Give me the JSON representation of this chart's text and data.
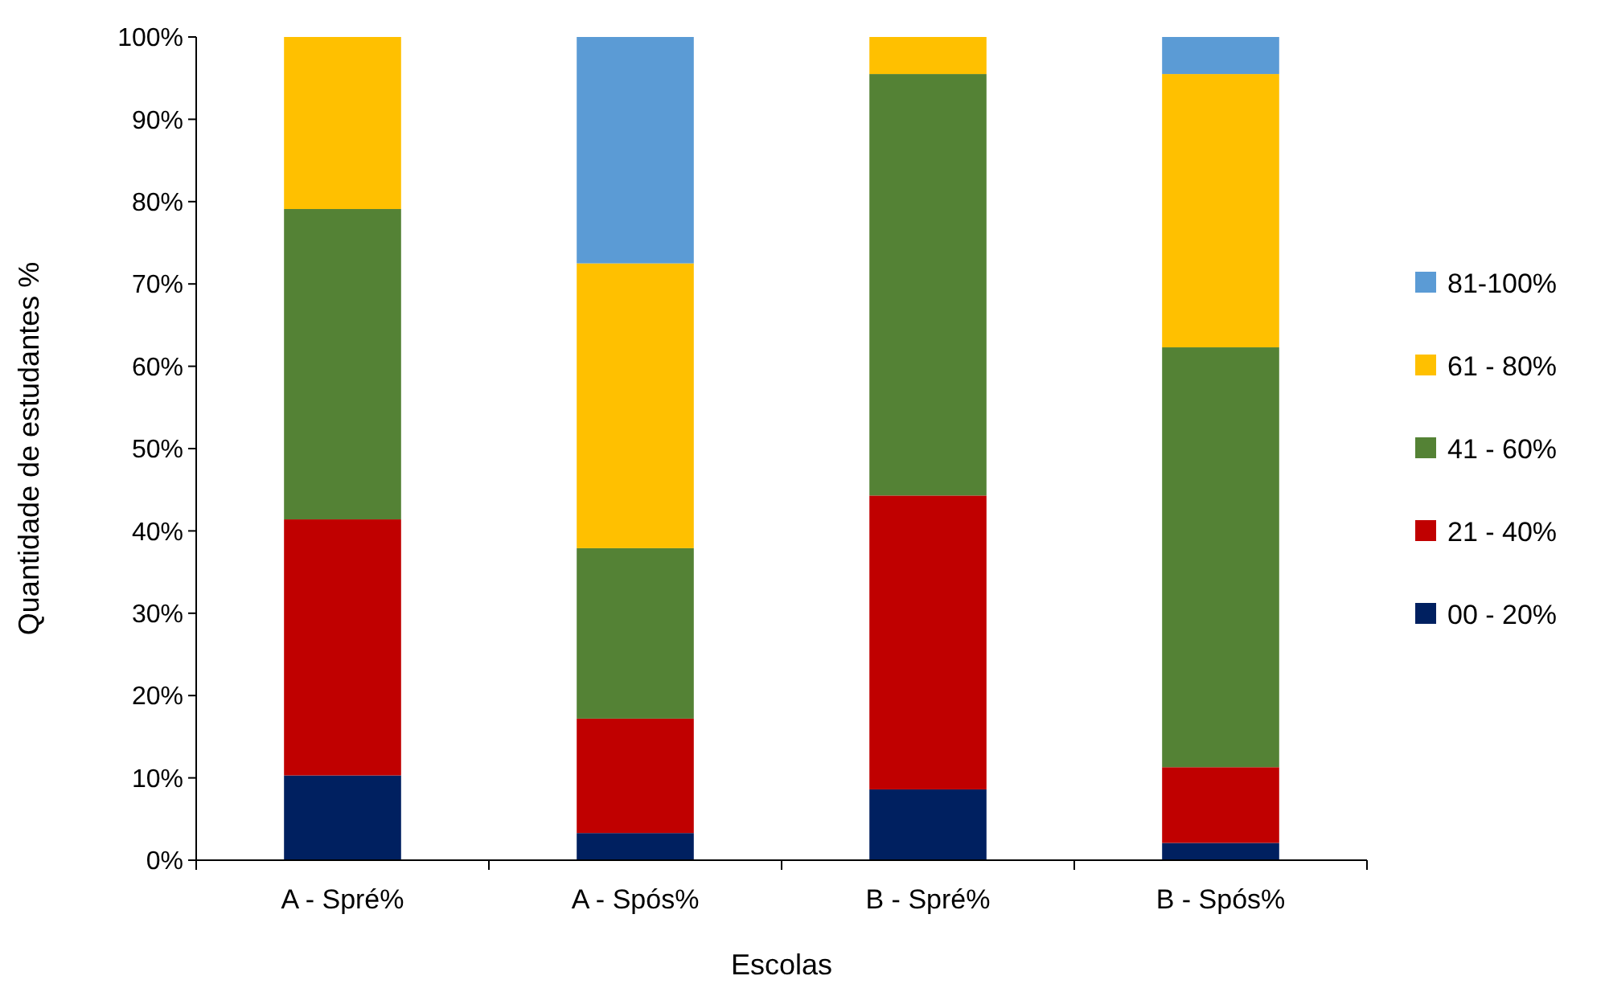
{
  "chart_data": {
    "type": "bar",
    "stacked": true,
    "xlabel": "Escolas",
    "ylabel": "Quantidade de estudantes %",
    "categories": [
      "A - Spré%",
      "A - Spós%",
      "B - Spré%",
      "B - Spós%"
    ],
    "series": [
      {
        "name": "00 - 20%",
        "color": "#002060",
        "values": [
          10.3,
          3.3,
          8.6,
          2.1
        ]
      },
      {
        "name": "21 - 40%",
        "color": "#c00000",
        "values": [
          31.1,
          13.9,
          35.7,
          9.2
        ]
      },
      {
        "name": "41 - 60%",
        "color": "#548235",
        "values": [
          37.7,
          20.7,
          51.2,
          51.0
        ]
      },
      {
        "name": "61 - 80%",
        "color": "#ffc000",
        "values": [
          20.9,
          34.6,
          4.5,
          33.2
        ]
      },
      {
        "name": "81-100%",
        "color": "#5b9bd5",
        "values": [
          0,
          27.5,
          0,
          4.5
        ]
      }
    ],
    "ylim": [
      0,
      100
    ],
    "yticks": [
      {
        "value": 0,
        "label": "0%"
      },
      {
        "value": 10,
        "label": "10%"
      },
      {
        "value": 20,
        "label": "20%"
      },
      {
        "value": 30,
        "label": "30%"
      },
      {
        "value": 40,
        "label": "40%"
      },
      {
        "value": 50,
        "label": "50%"
      },
      {
        "value": 60,
        "label": "60%"
      },
      {
        "value": 70,
        "label": "70%"
      },
      {
        "value": 80,
        "label": "80%"
      },
      {
        "value": 90,
        "label": "90%"
      },
      {
        "value": 100,
        "label": "100%"
      }
    ],
    "grid": false,
    "legend": "right"
  }
}
